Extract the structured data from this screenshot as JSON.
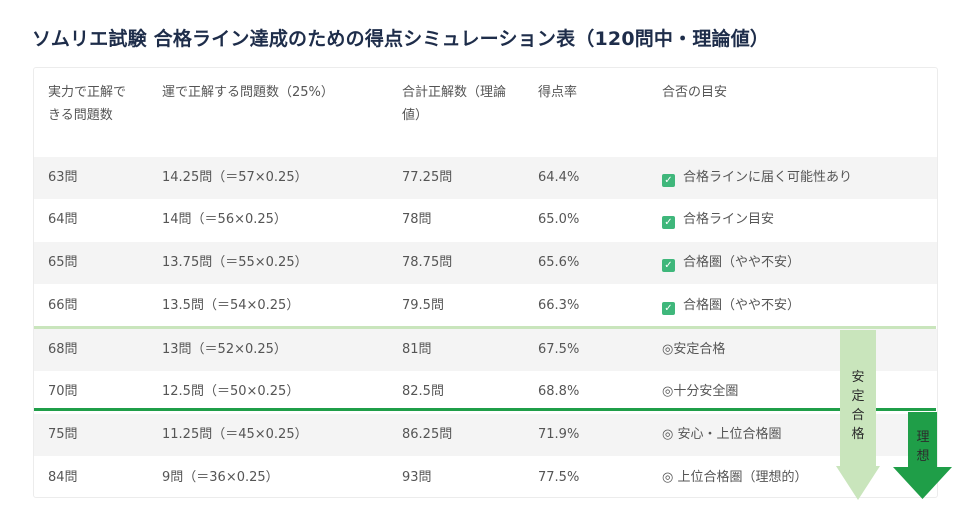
{
  "title": "ソムリエ試験 合格ライン達成のための得点シミュレーション表（120問中・理論値）",
  "headers": {
    "col1": "実力で正解できる問題数",
    "col2": "運で正解する問題数（25%）",
    "col3": "合計正解数（理論値）",
    "col4": "得点率",
    "col5": "合否の目安"
  },
  "rows": [
    {
      "correct": "63問",
      "luck": "14.25問（＝57×0.25）",
      "total": "77.25問",
      "rate": "64.4%",
      "mark": "✓",
      "verdict": "合格ラインに届く可能性あり"
    },
    {
      "correct": "64問",
      "luck": "14問（＝56×0.25）",
      "total": "78問",
      "rate": "65.0%",
      "mark": "✓",
      "verdict": "合格ライン目安"
    },
    {
      "correct": "65問",
      "luck": "13.75問（＝55×0.25）",
      "total": "78.75問",
      "rate": "65.6%",
      "mark": "✓",
      "verdict": "合格圏（やや不安）"
    },
    {
      "correct": "66問",
      "luck": "13.5問（＝54×0.25）",
      "total": "79.5問",
      "rate": "66.3%",
      "mark": "✓",
      "verdict": "合格圏（やや不安）"
    },
    {
      "correct": "68問",
      "luck": "13問（＝52×0.25）",
      "total": "81問",
      "rate": "67.5%",
      "mark": "",
      "verdict": "◎安定合格"
    },
    {
      "correct": "70問",
      "luck": "12.5問（＝50×0.25）",
      "total": "82.5問",
      "rate": "68.8%",
      "mark": "",
      "verdict": "◎十分安全圏"
    },
    {
      "correct": "75問",
      "luck": "11.25問（＝45×0.25）",
      "total": "86.25問",
      "rate": "71.9%",
      "mark": "",
      "verdict": "◎ 安心・上位合格圏"
    },
    {
      "correct": "84問",
      "luck": "9問（＝36×0.25）",
      "total": "93問",
      "rate": "77.5%",
      "mark": "",
      "verdict": "◎ 上位合格圏（理想的）"
    }
  ],
  "arrows": {
    "stable_label": "安定合格",
    "ideal_label": "理想"
  },
  "colors": {
    "title": "#1e2d4a",
    "check": "#3fb77b",
    "light_green": "#c9e5bc",
    "dark_green": "#1f9e48"
  }
}
